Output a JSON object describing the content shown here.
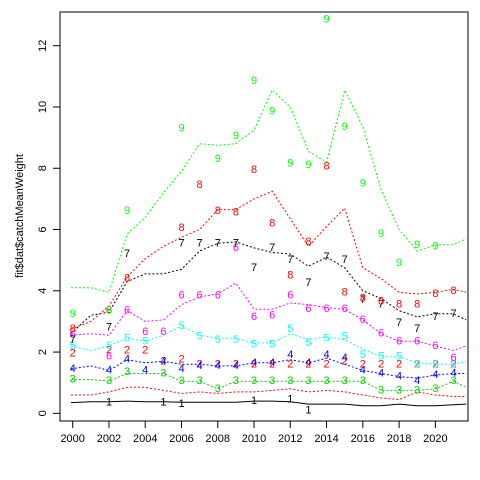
{
  "chart_data": {
    "type": "line",
    "ylabel": "fit$dat$catchMeanWeight",
    "xlabel": "",
    "xlim": [
      1999.3,
      2021.8
    ],
    "ylim": [
      -0.25,
      13.1
    ],
    "x_ticks": [
      2000,
      2002,
      2004,
      2006,
      2008,
      2010,
      2012,
      2014,
      2016,
      2018,
      2020
    ],
    "y_ticks": [
      0,
      2,
      4,
      6,
      8,
      10,
      12
    ],
    "x": [
      2000,
      2001,
      2002,
      2003,
      2004,
      2005,
      2006,
      2007,
      2008,
      2009,
      2010,
      2011,
      2012,
      2013,
      2014,
      2015,
      2016,
      2017,
      2018,
      2019,
      2020,
      2021
    ],
    "line_x": [
      1999.9,
      2001,
      2002,
      2003,
      2004,
      2005,
      2006,
      2007,
      2008,
      2009,
      2010,
      2011,
      2012,
      2013,
      2014,
      2015,
      2016,
      2017,
      2018,
      2019,
      2020,
      2021,
      2021.7
    ],
    "series": [
      {
        "label": "1",
        "color": "#000000",
        "values": [
          null,
          null,
          0.35,
          null,
          null,
          0.35,
          0.3,
          null,
          null,
          null,
          0.4,
          null,
          0.45,
          0.1,
          null,
          null,
          null,
          null,
          null,
          null,
          null,
          null
        ],
        "line": [
          0.35,
          0.38,
          0.38,
          0.4,
          0.38,
          0.38,
          0.36,
          0.36,
          0.36,
          0.36,
          0.4,
          0.4,
          0.38,
          0.3,
          0.3,
          0.3,
          0.25,
          0.25,
          0.3,
          0.25,
          0.25,
          0.28,
          0.3
        ]
      },
      {
        "label": "2",
        "color": "#ff0000",
        "values": [
          1.95,
          null,
          2.05,
          2.05,
          2.05,
          1.7,
          1.75,
          1.6,
          1.6,
          1.6,
          1.6,
          1.6,
          1.6,
          1.6,
          1.6,
          1.7,
          1.6,
          1.6,
          1.6,
          1.6,
          1.6,
          1.6
        ],
        "line": [
          0.6,
          0.6,
          0.7,
          0.85,
          0.85,
          0.75,
          0.65,
          0.7,
          0.65,
          0.7,
          0.7,
          0.75,
          0.8,
          0.7,
          0.75,
          0.7,
          0.6,
          0.5,
          0.45,
          0.7,
          0.6,
          0.55,
          0.55
        ]
      },
      {
        "label": "3",
        "color": "#00cd00",
        "values": [
          1.1,
          null,
          1.05,
          1.35,
          null,
          1.3,
          1.05,
          1.05,
          0.8,
          1.05,
          1.05,
          1.05,
          1.05,
          1.05,
          1.05,
          1.05,
          1.05,
          0.75,
          0.75,
          0.75,
          0.8,
          1.05
        ],
        "line": [
          1.1,
          1.1,
          1.05,
          1.3,
          1.3,
          1.3,
          1.05,
          1.05,
          0.8,
          1.05,
          1.05,
          1.05,
          1.05,
          1.05,
          1.05,
          1.05,
          1.05,
          0.75,
          0.75,
          0.75,
          0.8,
          1.05,
          0.85
        ]
      },
      {
        "label": "4",
        "color": "#0000ff",
        "values": [
          1.45,
          null,
          1.4,
          1.75,
          1.4,
          1.7,
          1.45,
          1.55,
          1.55,
          1.55,
          1.65,
          1.65,
          1.9,
          1.65,
          1.9,
          1.8,
          1.4,
          1.3,
          1.2,
          1.05,
          1.25,
          1.3
        ],
        "line": [
          1.45,
          1.55,
          1.4,
          1.75,
          1.65,
          1.7,
          1.6,
          1.6,
          1.55,
          1.55,
          1.65,
          1.65,
          1.75,
          1.65,
          1.8,
          1.6,
          1.4,
          1.3,
          1.2,
          1.15,
          1.25,
          1.3,
          1.3
        ]
      },
      {
        "label": "5",
        "color": "#00ffff",
        "values": [
          2.2,
          null,
          2.2,
          2.45,
          2.35,
          null,
          2.85,
          2.5,
          2.4,
          2.4,
          2.25,
          2.25,
          2.75,
          2.3,
          2.45,
          2.5,
          1.9,
          1.85,
          1.85,
          1.6,
          1.6,
          1.6
        ],
        "line": [
          2.2,
          2.05,
          2.2,
          2.45,
          2.35,
          2.55,
          2.85,
          2.55,
          2.45,
          2.45,
          2.3,
          2.3,
          2.6,
          2.4,
          2.5,
          2.4,
          2.1,
          1.85,
          1.85,
          1.65,
          1.6,
          1.6,
          1.7
        ]
      },
      {
        "label": "6",
        "color": "#ff00ff",
        "values": [
          2.55,
          null,
          1.85,
          3.35,
          2.65,
          2.65,
          3.85,
          3.85,
          3.85,
          5.4,
          3.15,
          3.2,
          3.85,
          3.4,
          3.4,
          3.4,
          3.05,
          2.6,
          2.35,
          2.35,
          2.2,
          1.8
        ],
        "line": [
          2.55,
          2.6,
          2.55,
          3.35,
          3.0,
          3.05,
          3.55,
          3.8,
          3.9,
          4.25,
          3.4,
          3.4,
          3.6,
          3.55,
          3.45,
          3.4,
          3.05,
          2.6,
          2.35,
          2.35,
          2.2,
          2.05,
          2.2
        ]
      },
      {
        "label": "7",
        "color": "#000000",
        "values": [
          2.4,
          null,
          2.8,
          5.2,
          null,
          null,
          5.55,
          5.55,
          5.55,
          5.55,
          4.75,
          5.4,
          5.0,
          4.25,
          5.1,
          5.0,
          3.7,
          3.55,
          2.95,
          2.75,
          3.15,
          3.25
        ],
        "line": [
          2.6,
          3.2,
          3.3,
          4.3,
          4.55,
          4.55,
          4.7,
          5.3,
          5.55,
          5.6,
          5.4,
          5.25,
          5.2,
          4.8,
          5.1,
          4.75,
          4.0,
          3.75,
          3.35,
          3.15,
          3.25,
          3.25,
          3.05
        ]
      },
      {
        "label": "8",
        "color": "#ff0000",
        "values": [
          2.75,
          null,
          3.35,
          4.4,
          null,
          null,
          6.05,
          7.45,
          6.6,
          6.55,
          7.95,
          6.2,
          4.5,
          5.6,
          8.05,
          3.95,
          3.75,
          3.65,
          3.55,
          3.55,
          3.9,
          4.0
        ],
        "line": [
          2.75,
          3.0,
          3.5,
          4.45,
          5.05,
          5.45,
          5.75,
          6.0,
          6.65,
          6.65,
          7.0,
          7.25,
          6.35,
          5.45,
          6.1,
          6.7,
          4.75,
          4.4,
          3.95,
          3.9,
          3.95,
          4.05,
          3.95
        ]
      },
      {
        "label": "9",
        "color": "#00ff00",
        "values": [
          3.25,
          null,
          3.35,
          6.6,
          null,
          null,
          9.3,
          null,
          8.3,
          9.05,
          10.85,
          9.85,
          8.15,
          8.1,
          12.85,
          9.35,
          7.5,
          5.85,
          4.9,
          5.5,
          5.45,
          null
        ],
        "line": [
          4.1,
          4.1,
          3.95,
          5.85,
          6.4,
          7.2,
          7.9,
          8.8,
          8.75,
          8.8,
          9.25,
          10.55,
          10.0,
          8.55,
          8.2,
          10.55,
          9.35,
          7.3,
          6.0,
          5.3,
          5.5,
          5.5,
          5.7
        ]
      }
    ]
  }
}
